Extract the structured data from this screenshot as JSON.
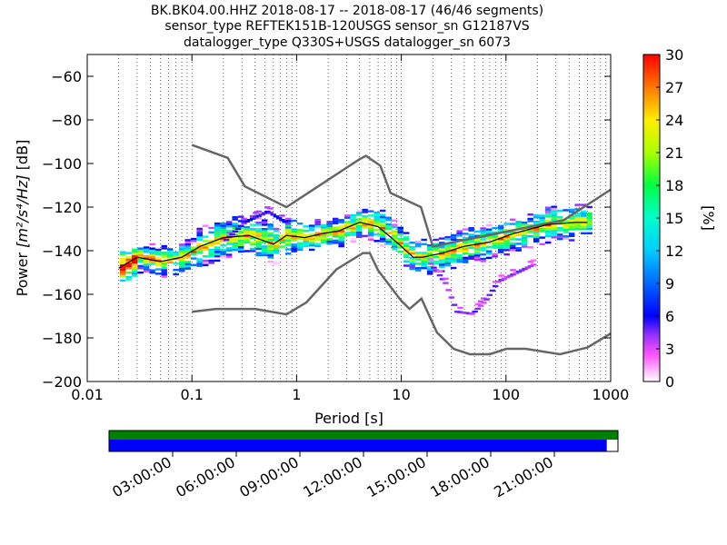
{
  "chart_data": {
    "type": "heatmap",
    "title": {
      "line1": "BK.BK04.00.HHZ   2018-08-17 -- 2018-08-17  (46/46 segments)",
      "line2": "sensor_type REFTEK151B-120USGS sensor_sn G12187VS",
      "line3": "datalogger_type Q330S+USGS datalogger_sn 6073"
    },
    "xlabel": "Period [s]",
    "ylabel_prefix": "Power ",
    "ylabel_units": "[m²/s⁴/Hz]",
    "ylabel_suffix": " [dB]",
    "xscale": "log",
    "xlim": [
      0.01,
      1000
    ],
    "ylim": [
      -200,
      -50
    ],
    "xticks": [
      {
        "value": 0.01,
        "label": "0.01"
      },
      {
        "value": 0.1,
        "label": "0.1"
      },
      {
        "value": 1,
        "label": "1"
      },
      {
        "value": 10,
        "label": "10"
      },
      {
        "value": 100,
        "label": "100"
      },
      {
        "value": 1000,
        "label": "1000"
      }
    ],
    "yticks": [
      {
        "value": -60,
        "label": "−60"
      },
      {
        "value": -80,
        "label": "−80"
      },
      {
        "value": -100,
        "label": "−100"
      },
      {
        "value": -120,
        "label": "−120"
      },
      {
        "value": -140,
        "label": "−140"
      },
      {
        "value": -160,
        "label": "−160"
      },
      {
        "value": -180,
        "label": "−180"
      },
      {
        "value": -200,
        "label": "−200"
      }
    ],
    "grid": "vertical dotted (log minor)",
    "colorbar": {
      "label": "[%]",
      "range": [
        0,
        30
      ],
      "ticks": [
        {
          "value": 0,
          "label": "0"
        },
        {
          "value": 3,
          "label": "3"
        },
        {
          "value": 6,
          "label": "6"
        },
        {
          "value": 9,
          "label": "9"
        },
        {
          "value": 12,
          "label": "12"
        },
        {
          "value": 15,
          "label": "15"
        },
        {
          "value": 18,
          "label": "18"
        },
        {
          "value": 21,
          "label": "21"
        },
        {
          "value": 24,
          "label": "24"
        },
        {
          "value": 27,
          "label": "27"
        },
        {
          "value": 30,
          "label": "30"
        }
      ]
    },
    "noise_models": {
      "high": [
        [
          0.1,
          -91.5
        ],
        [
          0.22,
          -97.4
        ],
        [
          0.32,
          -110.5
        ],
        [
          0.8,
          -120
        ],
        [
          4.0,
          -98
        ],
        [
          4.6,
          -96.5
        ],
        [
          6.3,
          -101
        ],
        [
          7.9,
          -113.5
        ],
        [
          15.4,
          -120
        ],
        [
          20,
          -138
        ],
        [
          354.8,
          -126
        ],
        [
          1000,
          -112
        ]
      ],
      "low": [
        [
          0.1,
          -168
        ],
        [
          0.17,
          -166.7
        ],
        [
          0.4,
          -166.7
        ],
        [
          0.8,
          -169.2
        ],
        [
          1.24,
          -163.7
        ],
        [
          2.4,
          -148.6
        ],
        [
          4.3,
          -141.1
        ],
        [
          5.0,
          -141.1
        ],
        [
          6.0,
          -149
        ],
        [
          10,
          -163
        ],
        [
          12,
          -166.7
        ],
        [
          15.6,
          -162
        ],
        [
          21.9,
          -177.5
        ],
        [
          31.6,
          -185
        ],
        [
          45,
          -187.5
        ],
        [
          70,
          -187.5
        ],
        [
          101,
          -185
        ],
        [
          154,
          -185
        ],
        [
          328,
          -187.5
        ],
        [
          600,
          -184.4
        ],
        [
          1000,
          -178
        ]
      ]
    },
    "median": [
      [
        0.02,
        -148
      ],
      [
        0.03,
        -143
      ],
      [
        0.05,
        -145
      ],
      [
        0.08,
        -143
      ],
      [
        0.12,
        -138
      ],
      [
        0.2,
        -134
      ],
      [
        0.35,
        -133
      ],
      [
        0.6,
        -137
      ],
      [
        0.8,
        -133
      ],
      [
        1.2,
        -134
      ],
      [
        1.8,
        -132
      ],
      [
        2.5,
        -131
      ],
      [
        4,
        -127
      ],
      [
        6,
        -129
      ],
      [
        8,
        -134
      ],
      [
        10,
        -138
      ],
      [
        13,
        -143
      ],
      [
        16,
        -143
      ],
      [
        25,
        -141
      ],
      [
        40,
        -138
      ],
      [
        70,
        -136
      ],
      [
        120,
        -132
      ],
      [
        250,
        -128
      ],
      [
        450,
        -127
      ],
      [
        600,
        -127
      ]
    ],
    "density_bands": [
      {
        "x": [
          0.018,
          0.1
        ],
        "center_y": [
          -148,
          -141
        ],
        "spread": 5
      },
      {
        "x": [
          0.1,
          0.3
        ],
        "center_y": [
          -140,
          -132
        ],
        "spread": 7
      },
      {
        "x": [
          0.3,
          1.0
        ],
        "center_y": [
          -132,
          -136
        ],
        "spread": 7
      },
      {
        "x": [
          1.0,
          5.0
        ],
        "center_y": [
          -134,
          -127
        ],
        "spread": 5
      },
      {
        "x": [
          5.0,
          15.0
        ],
        "center_y": [
          -127,
          -143
        ],
        "spread": 6
      },
      {
        "x": [
          15.0,
          600
        ],
        "center_y": [
          -143,
          -127
        ],
        "spread": 6
      }
    ],
    "low_tail_curve": [
      [
        18,
        -146
      ],
      [
        25,
        -155
      ],
      [
        32,
        -168
      ],
      [
        45,
        -169
      ],
      [
        60,
        -163
      ],
      [
        80,
        -154
      ],
      [
        120,
        -150
      ],
      [
        180,
        -146
      ]
    ],
    "upper_tail_curve": [
      [
        0.2,
        -135
      ],
      [
        0.3,
        -127
      ],
      [
        0.5,
        -122
      ],
      [
        0.8,
        -128
      ]
    ],
    "time_axis": {
      "ticks": [
        {
          "hour": 3,
          "label": "03:00:00"
        },
        {
          "hour": 6,
          "label": "06:00:00"
        },
        {
          "hour": 9,
          "label": "09:00:00"
        },
        {
          "hour": 12,
          "label": "12:00:00"
        },
        {
          "hour": 15,
          "label": "15:00:00"
        },
        {
          "hour": 18,
          "label": "18:00:00"
        },
        {
          "hour": 21,
          "label": "21:00:00"
        }
      ],
      "coverage_fraction": 0.978
    },
    "colors": {
      "coverage_top": "#008000",
      "coverage_bottom": "#0000ff",
      "noise_model": "#666666",
      "median": "#000000"
    }
  }
}
